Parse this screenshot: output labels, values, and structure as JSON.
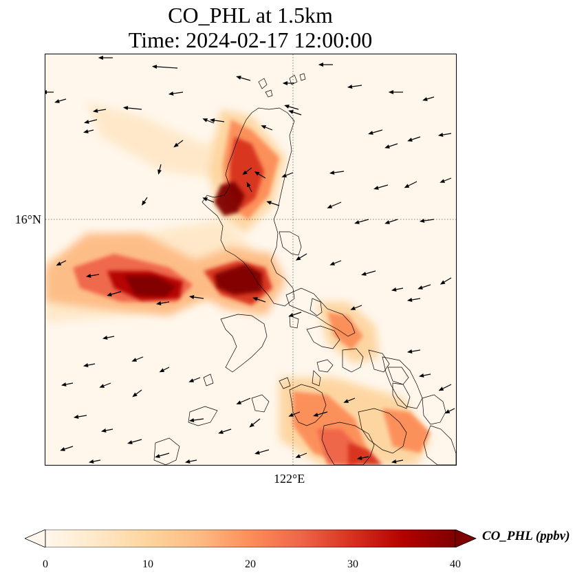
{
  "title": {
    "line1": "CO_PHL at 1.5km",
    "line2": "Time: 2024-02-17 12:00:00"
  },
  "map": {
    "lat_label": "16°N",
    "lon_label": "122°E",
    "gridline_style": "dotted",
    "land_outline_color": "#000000"
  },
  "colorbar": {
    "label": "CO_PHL (ppbv)",
    "cmap": "OrRd",
    "ticks": [
      "0",
      "10",
      "20",
      "30",
      "40"
    ],
    "min": 0,
    "max": 40,
    "extend": "both",
    "colors": [
      "#fff7ec",
      "#fee8c8",
      "#fdd49e",
      "#fdbb84",
      "#fc8d59",
      "#ef6548",
      "#d7301f",
      "#b30000",
      "#7f0000"
    ]
  },
  "plumes": [
    {
      "name": "west-plume",
      "peak_ppbv": 40
    },
    {
      "name": "north-luzon-plume",
      "peak_ppbv": 40
    },
    {
      "name": "central-luzon-plume",
      "peak_ppbv": 40
    },
    {
      "name": "bicol-plume",
      "peak_ppbv": 28
    },
    {
      "name": "visayas-plume",
      "peak_ppbv": 30
    }
  ]
}
